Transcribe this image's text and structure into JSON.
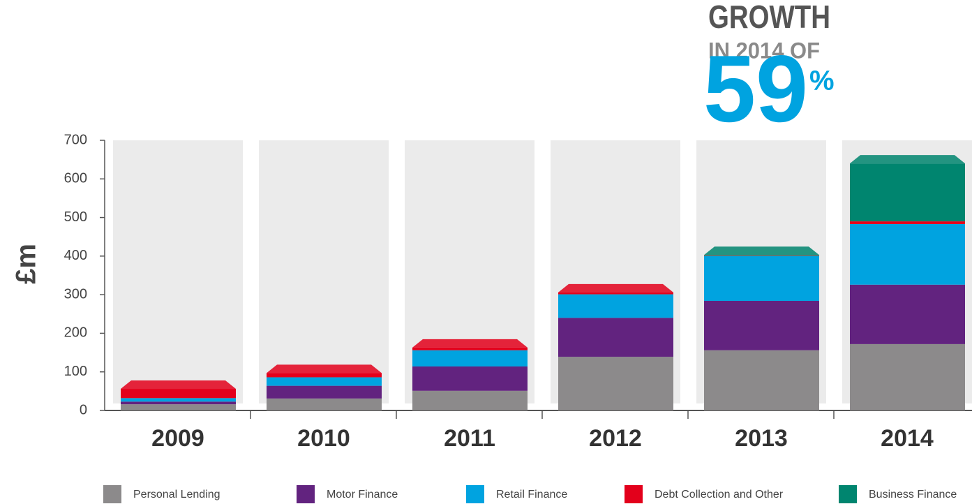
{
  "chart_data": {
    "type": "stacked_bar",
    "y_axis_label": "£m",
    "callout": {
      "line1": "GROWTH",
      "line2": "IN 2014 OF",
      "value": 59,
      "unit": "%"
    },
    "categories": [
      "2009",
      "2010",
      "2011",
      "2012",
      "2013",
      "2014"
    ],
    "series": [
      {
        "name": "Personal Lending",
        "color": "#8c8a8b",
        "values": [
          16,
          31,
          51,
          139,
          156,
          172
        ]
      },
      {
        "name": "Motor Finance",
        "color": "#62237f",
        "values": [
          7,
          33,
          63,
          101,
          128,
          154
        ]
      },
      {
        "name": "Retail Finance",
        "color": "#00a3e0",
        "values": [
          9,
          22,
          42,
          61,
          116,
          157
        ]
      },
      {
        "name": "Debt Collection and Other",
        "color": "#e3001b",
        "values": [
          24,
          11,
          7,
          5,
          1,
          7
        ]
      },
      {
        "name": "Business Finance",
        "color": "#00856f",
        "values": [
          0,
          0,
          0,
          0,
          2,
          150
        ]
      }
    ],
    "ylim": [
      0,
      700
    ],
    "yticks": [
      0,
      100,
      200,
      300,
      400,
      500,
      600,
      700
    ]
  }
}
